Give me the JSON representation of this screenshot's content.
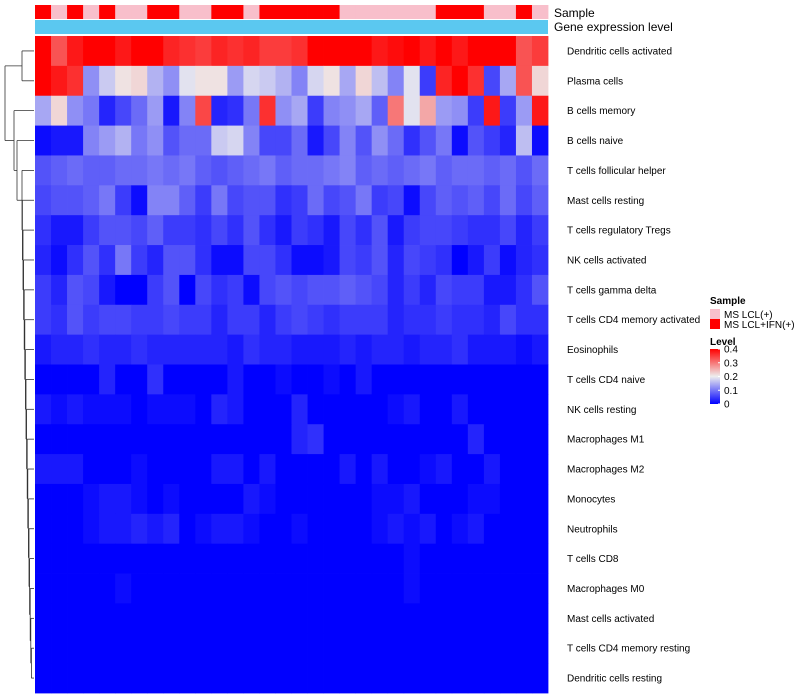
{
  "chart_data": {
    "type": "heatmap",
    "title": "",
    "annotation_tracks": [
      {
        "name": "Sample",
        "kind": "categorical"
      },
      {
        "name": "Gene expression level",
        "kind": "bar",
        "color": "#5BC8F0"
      }
    ],
    "rows": [
      "Dendritic cells activated",
      "Plasma cells",
      "B cells memory",
      "B cells naive",
      "T cells follicular helper",
      "Mast cells resting",
      "T cells regulatory  Tregs",
      "NK cells activated",
      "T cells gamma delta",
      "T cells CD4 memory activated",
      "Eosinophils",
      "T cells CD4 naive",
      "NK cells resting",
      "Macrophages M1",
      "Macrophages M2",
      "Monocytes",
      "Neutrophils",
      "T cells CD8",
      "Macrophages M0",
      "Mast cells activated",
      "T cells CD4 memory resting",
      "Dendritic cells resting"
    ],
    "sample_groups": [
      "MS LCL+IFN(+)",
      "MS LCL(+)",
      "MS LCL+IFN(+)",
      "MS LCL(+)",
      "MS LCL+IFN(+)",
      "MS LCL(+)",
      "MS LCL(+)",
      "MS LCL+IFN(+)",
      "MS LCL+IFN(+)",
      "MS LCL(+)",
      "MS LCL(+)",
      "MS LCL+IFN(+)",
      "MS LCL+IFN(+)",
      "MS LCL(+)",
      "MS LCL+IFN(+)",
      "MS LCL+IFN(+)",
      "MS LCL+IFN(+)",
      "MS LCL+IFN(+)",
      "MS LCL+IFN(+)",
      "MS LCL(+)",
      "MS LCL(+)",
      "MS LCL(+)",
      "MS LCL(+)",
      "MS LCL(+)",
      "MS LCL(+)",
      "MS LCL+IFN(+)",
      "MS LCL+IFN(+)",
      "MS LCL+IFN(+)",
      "MS LCL(+)",
      "MS LCL(+)",
      "MS LCL+IFN(+)",
      "MS LCL(+)"
    ],
    "values": [
      [
        0.4,
        0.33,
        0.38,
        0.4,
        0.4,
        0.38,
        0.4,
        0.4,
        0.37,
        0.36,
        0.35,
        0.37,
        0.36,
        0.37,
        0.35,
        0.35,
        0.36,
        0.4,
        0.4,
        0.4,
        0.4,
        0.38,
        0.39,
        0.4,
        0.38,
        0.4,
        0.38,
        0.4,
        0.4,
        0.4,
        0.33,
        0.35
      ],
      [
        0.4,
        0.38,
        0.36,
        0.12,
        0.17,
        0.21,
        0.22,
        0.15,
        0.12,
        0.19,
        0.21,
        0.21,
        0.13,
        0.18,
        0.17,
        0.15,
        0.11,
        0.18,
        0.21,
        0.14,
        0.22,
        0.16,
        0.11,
        0.19,
        0.05,
        0.37,
        0.4,
        0.36,
        0.06,
        0.14,
        0.33,
        0.22
      ],
      [
        0.14,
        0.22,
        0.12,
        0.1,
        0.03,
        0.06,
        0.09,
        0.13,
        0.02,
        0.11,
        0.34,
        0.03,
        0.04,
        0.1,
        0.36,
        0.12,
        0.14,
        0.05,
        0.11,
        0.12,
        0.14,
        0.08,
        0.3,
        0.19,
        0.26,
        0.13,
        0.12,
        0.05,
        0.38,
        0.05,
        0.13,
        0.38
      ],
      [
        0.01,
        0.02,
        0.02,
        0.11,
        0.13,
        0.15,
        0.1,
        0.12,
        0.07,
        0.09,
        0.09,
        0.17,
        0.18,
        0.11,
        0.06,
        0.06,
        0.09,
        0.02,
        0.06,
        0.11,
        0.07,
        0.12,
        0.09,
        0.04,
        0.07,
        0.1,
        0.01,
        0.07,
        0.05,
        0.03,
        0.16,
        0.01
      ],
      [
        0.07,
        0.08,
        0.09,
        0.08,
        0.08,
        0.09,
        0.09,
        0.1,
        0.09,
        0.1,
        0.08,
        0.07,
        0.08,
        0.09,
        0.1,
        0.08,
        0.09,
        0.09,
        0.1,
        0.11,
        0.08,
        0.09,
        0.08,
        0.09,
        0.1,
        0.08,
        0.09,
        0.09,
        0.08,
        0.09,
        0.07,
        0.09
      ],
      [
        0.06,
        0.07,
        0.07,
        0.08,
        0.1,
        0.05,
        0.01,
        0.11,
        0.11,
        0.08,
        0.05,
        0.1,
        0.06,
        0.07,
        0.07,
        0.04,
        0.05,
        0.09,
        0.06,
        0.07,
        0.1,
        0.05,
        0.06,
        0.01,
        0.06,
        0.08,
        0.07,
        0.08,
        0.06,
        0.09,
        0.06,
        0.08
      ],
      [
        0.04,
        0.02,
        0.02,
        0.05,
        0.07,
        0.07,
        0.06,
        0.08,
        0.05,
        0.05,
        0.04,
        0.06,
        0.04,
        0.07,
        0.04,
        0.02,
        0.05,
        0.04,
        0.02,
        0.06,
        0.04,
        0.07,
        0.02,
        0.05,
        0.06,
        0.06,
        0.05,
        0.04,
        0.04,
        0.06,
        0.03,
        0.05
      ],
      [
        0.03,
        0.01,
        0.04,
        0.07,
        0.04,
        0.1,
        0.05,
        0.03,
        0.07,
        0.07,
        0.04,
        0.01,
        0.01,
        0.06,
        0.06,
        0.04,
        0.01,
        0.01,
        0.02,
        0.06,
        0.05,
        0.07,
        0.03,
        0.06,
        0.05,
        0.04,
        0.0,
        0.02,
        0.05,
        0.01,
        0.03,
        0.04
      ],
      [
        0.05,
        0.03,
        0.07,
        0.06,
        0.02,
        0.0,
        0.0,
        0.05,
        0.07,
        0.0,
        0.06,
        0.04,
        0.05,
        0.01,
        0.06,
        0.07,
        0.06,
        0.07,
        0.07,
        0.08,
        0.07,
        0.06,
        0.03,
        0.05,
        0.03,
        0.06,
        0.05,
        0.05,
        0.02,
        0.02,
        0.04,
        0.07
      ],
      [
        0.05,
        0.04,
        0.07,
        0.05,
        0.06,
        0.06,
        0.05,
        0.05,
        0.06,
        0.05,
        0.05,
        0.03,
        0.05,
        0.05,
        0.03,
        0.05,
        0.06,
        0.05,
        0.04,
        0.05,
        0.05,
        0.05,
        0.03,
        0.04,
        0.04,
        0.05,
        0.04,
        0.04,
        0.03,
        0.06,
        0.04,
        0.04
      ],
      [
        0.02,
        0.03,
        0.03,
        0.04,
        0.03,
        0.03,
        0.04,
        0.03,
        0.03,
        0.03,
        0.03,
        0.03,
        0.02,
        0.04,
        0.03,
        0.03,
        0.02,
        0.02,
        0.02,
        0.03,
        0.02,
        0.03,
        0.03,
        0.02,
        0.03,
        0.03,
        0.04,
        0.02,
        0.02,
        0.02,
        0.01,
        0.02
      ],
      [
        0.0,
        0.0,
        0.0,
        0.0,
        0.03,
        0.0,
        0.0,
        0.04,
        0.0,
        0.0,
        0.0,
        0.0,
        0.02,
        0.0,
        0.0,
        0.01,
        0.0,
        0.0,
        0.01,
        0.0,
        0.02,
        0.0,
        0.0,
        0.0,
        0.0,
        0.0,
        0.0,
        0.0,
        0.0,
        0.0,
        0.0,
        0.0
      ],
      [
        0.02,
        0.01,
        0.02,
        0.01,
        0.01,
        0.01,
        0.0,
        0.01,
        0.01,
        0.01,
        0.0,
        0.03,
        0.02,
        0.0,
        0.0,
        0.0,
        0.03,
        0.0,
        0.0,
        0.0,
        0.0,
        0.0,
        0.01,
        0.02,
        0.0,
        0.0,
        0.02,
        0.0,
        0.0,
        0.0,
        0.0,
        0.0
      ],
      [
        0.0,
        0.0,
        0.0,
        0.0,
        0.0,
        0.0,
        0.0,
        0.0,
        0.0,
        0.0,
        0.0,
        0.0,
        0.0,
        0.0,
        0.0,
        0.0,
        0.03,
        0.04,
        0.0,
        0.0,
        0.0,
        0.0,
        0.0,
        0.0,
        0.0,
        0.0,
        0.0,
        0.03,
        0.0,
        0.0,
        0.0,
        0.0
      ],
      [
        0.02,
        0.02,
        0.02,
        0.0,
        0.0,
        0.0,
        0.01,
        0.0,
        0.0,
        0.0,
        0.0,
        0.02,
        0.02,
        0.0,
        0.02,
        0.0,
        0.0,
        0.0,
        0.0,
        0.02,
        0.0,
        0.02,
        0.0,
        0.0,
        0.01,
        0.02,
        0.0,
        0.0,
        0.02,
        0.0,
        0.0,
        0.0
      ],
      [
        0.0,
        0.0,
        0.0,
        0.01,
        0.02,
        0.02,
        0.01,
        0.0,
        0.01,
        0.0,
        0.0,
        0.0,
        0.0,
        0.02,
        0.01,
        0.0,
        0.0,
        0.0,
        0.0,
        0.0,
        0.0,
        0.01,
        0.01,
        0.02,
        0.0,
        0.0,
        0.0,
        0.01,
        0.01,
        0.0,
        0.0,
        0.0
      ],
      [
        0.0,
        0.0,
        0.0,
        0.01,
        0.02,
        0.02,
        0.03,
        0.02,
        0.03,
        0.0,
        0.01,
        0.02,
        0.02,
        0.01,
        0.0,
        0.0,
        0.01,
        0.0,
        0.0,
        0.0,
        0.0,
        0.01,
        0.02,
        0.01,
        0.02,
        0.0,
        0.01,
        0.02,
        0.0,
        0.0,
        0.0,
        0.0
      ],
      [
        0.0,
        0.0,
        0.0,
        0.0,
        0.0,
        0.0,
        0.0,
        0.0,
        0.0,
        0.0,
        0.0,
        0.0,
        0.0,
        0.0,
        0.0,
        0.0,
        0.0,
        0.0,
        0.0,
        0.0,
        0.0,
        0.0,
        0.0,
        0.01,
        0.0,
        0.0,
        0.0,
        0.0,
        0.0,
        0.0,
        0.0,
        0.0
      ],
      [
        0.0,
        0.0,
        0.0,
        0.0,
        0.0,
        0.01,
        0.0,
        0.0,
        0.0,
        0.0,
        0.0,
        0.0,
        0.0,
        0.0,
        0.0,
        0.0,
        0.0,
        0.0,
        0.0,
        0.0,
        0.0,
        0.0,
        0.0,
        0.01,
        0.0,
        0.0,
        0.0,
        0.0,
        0.0,
        0.0,
        0.0,
        0.0
      ],
      [
        0.0,
        0.0,
        0.0,
        0.0,
        0.0,
        0.0,
        0.0,
        0.0,
        0.0,
        0.0,
        0.0,
        0.0,
        0.0,
        0.0,
        0.0,
        0.0,
        0.0,
        0.0,
        0.0,
        0.0,
        0.0,
        0.0,
        0.0,
        0.0,
        0.0,
        0.0,
        0.0,
        0.0,
        0.0,
        0.0,
        0.0,
        0.0
      ],
      [
        0.0,
        0.0,
        0.0,
        0.0,
        0.0,
        0.0,
        0.0,
        0.0,
        0.0,
        0.0,
        0.0,
        0.0,
        0.0,
        0.0,
        0.0,
        0.0,
        0.0,
        0.0,
        0.0,
        0.0,
        0.0,
        0.0,
        0.0,
        0.0,
        0.0,
        0.0,
        0.0,
        0.0,
        0.0,
        0.0,
        0.0,
        0.0
      ],
      [
        0.0,
        0.0,
        0.0,
        0.0,
        0.0,
        0.0,
        0.0,
        0.0,
        0.0,
        0.0,
        0.0,
        0.0,
        0.0,
        0.0,
        0.0,
        0.0,
        0.0,
        0.0,
        0.0,
        0.0,
        0.0,
        0.0,
        0.0,
        0.0,
        0.0,
        0.0,
        0.0,
        0.0,
        0.0,
        0.0,
        0.0,
        0.0
      ]
    ],
    "color_scale": {
      "stops": [
        {
          "value": 0.0,
          "color": "#0000FF"
        },
        {
          "value": 0.2,
          "color": "#EEEEEE"
        },
        {
          "value": 0.4,
          "color": "#FF0000"
        }
      ],
      "range": [
        0,
        0.4
      ]
    },
    "legend": {
      "sample": {
        "title": "Sample",
        "entries": [
          {
            "label": "MS LCL(+)",
            "color": "#F8BFCB"
          },
          {
            "label": "MS LCL+IFN(+)",
            "color": "#FF0000"
          }
        ]
      },
      "level": {
        "title": "Level",
        "ticks": [
          "0.4",
          "0.3",
          "0.2",
          "0.1",
          "0"
        ],
        "tick_values": [
          0.4,
          0.3,
          0.2,
          0.1,
          0
        ]
      },
      "position": "right"
    },
    "row_dendrogram": true
  }
}
